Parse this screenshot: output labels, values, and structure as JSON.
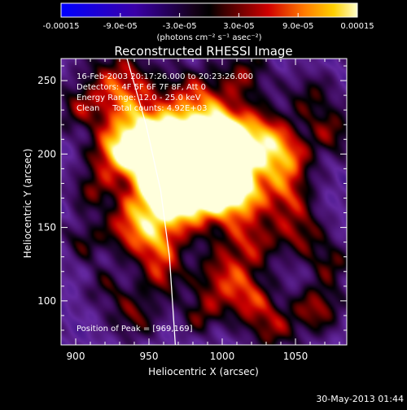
{
  "chart_data": {
    "type": "heatmap",
    "title": "Reconstructed RHESSI Image",
    "xlabel": "Heliocentric X (arcsec)",
    "ylabel": "Heliocentric Y (arcsec)",
    "xlim": [
      890,
      1085
    ],
    "ylim": [
      70,
      265
    ],
    "x_ticks": [
      900,
      950,
      1000,
      1050
    ],
    "y_ticks": [
      100,
      150,
      200,
      250
    ],
    "colorbar": {
      "label": "(photons cm⁻² s⁻¹ asec⁻²)",
      "range": [
        -0.00015,
        0.00015
      ],
      "tick_labels": [
        "-0.00015",
        "-9.0e-05",
        "-3.0e-05",
        "3.0e-05",
        "9.0e-05",
        "0.00015"
      ],
      "tick_values": [
        -0.00015,
        -9e-05,
        -3e-05,
        3e-05,
        9e-05,
        0.00015
      ]
    },
    "annotations": [
      "16-Feb-2003 20:17:26.000 to 20:23:26.000",
      "Detectors: 4F 5F 6F 7F 8F, Att 0",
      "Energy Range: 12.0 - 25.0 keV",
      "Clean     Total counts: 4.92E+03"
    ],
    "peak_label": "Position of Peak = [969,169]",
    "peak_position": [
      969,
      169
    ],
    "limb_arc": [
      [
        935,
        265
      ],
      [
        948,
        220
      ],
      [
        958,
        175
      ],
      [
        964,
        130
      ],
      [
        968,
        70
      ]
    ],
    "blobs": [
      [
        975,
        185,
        1.0,
        22
      ],
      [
        995,
        190,
        0.9,
        20
      ],
      [
        960,
        170,
        0.8,
        18
      ],
      [
        945,
        210,
        0.85,
        16
      ],
      [
        930,
        245,
        0.75,
        18
      ],
      [
        1000,
        215,
        0.8,
        16
      ],
      [
        1010,
        175,
        0.7,
        14
      ],
      [
        1030,
        210,
        0.7,
        14
      ],
      [
        1045,
        170,
        0.55,
        12
      ],
      [
        1055,
        145,
        0.5,
        12
      ],
      [
        1020,
        140,
        0.55,
        14
      ],
      [
        925,
        200,
        0.6,
        12
      ],
      [
        910,
        175,
        0.45,
        10
      ],
      [
        935,
        150,
        0.55,
        12
      ],
      [
        955,
        135,
        0.6,
        12
      ],
      [
        960,
        115,
        0.45,
        10
      ],
      [
        940,
        90,
        0.5,
        12
      ],
      [
        920,
        110,
        0.35,
        10
      ],
      [
        1000,
        115,
        0.6,
        14
      ],
      [
        1020,
        100,
        0.55,
        12
      ],
      [
        1035,
        80,
        0.5,
        12
      ],
      [
        1065,
        95,
        0.6,
        12
      ],
      [
        1075,
        125,
        0.45,
        10
      ],
      [
        1075,
        215,
        0.5,
        12
      ],
      [
        1060,
        240,
        0.4,
        12
      ],
      [
        1015,
        255,
        0.5,
        12
      ],
      [
        980,
        240,
        0.55,
        14
      ],
      [
        900,
        230,
        0.4,
        10
      ],
      [
        905,
        140,
        0.4,
        10
      ],
      [
        985,
        90,
        0.45,
        10
      ],
      [
        1045,
        195,
        0.6,
        12
      ],
      [
        965,
        205,
        0.75,
        14
      ]
    ]
  },
  "footer": {
    "timestamp": "30-May-2013 01:44"
  }
}
